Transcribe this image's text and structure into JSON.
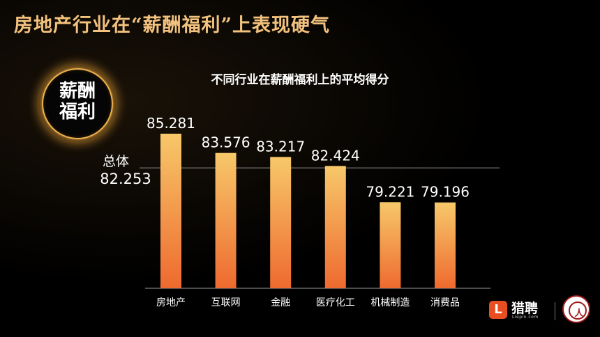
{
  "slide": {
    "title": "房地产行业在“薪酬福利”上表现硬气"
  },
  "badge": {
    "line1": "薪酬",
    "line2": "福利"
  },
  "logo": {
    "name": "猎聘",
    "subtext": "Liepin.com"
  },
  "colors": {
    "bar_top": "#f7c86a",
    "bar_bottom": "#ee6a2f",
    "title_gold": "#f3c27e",
    "accent": "#e84e1f"
  },
  "chart_data": {
    "type": "bar",
    "title": "不同行业在薪酬福利上的平均得分",
    "categories": [
      "房地产",
      "互联网",
      "金融",
      "医疗化工",
      "机械制造",
      "消费品"
    ],
    "values": [
      85.281,
      83.576,
      83.217,
      82.424,
      79.221,
      79.196
    ],
    "value_labels": [
      "85.281",
      "83.576",
      "83.217",
      "82.424",
      "79.221",
      "79.196"
    ],
    "reference_line": {
      "label": "总体",
      "value": 82.253,
      "value_label": "82.253"
    },
    "ylim": [
      71.6,
      85.281
    ],
    "grid": false,
    "legend": "none"
  }
}
